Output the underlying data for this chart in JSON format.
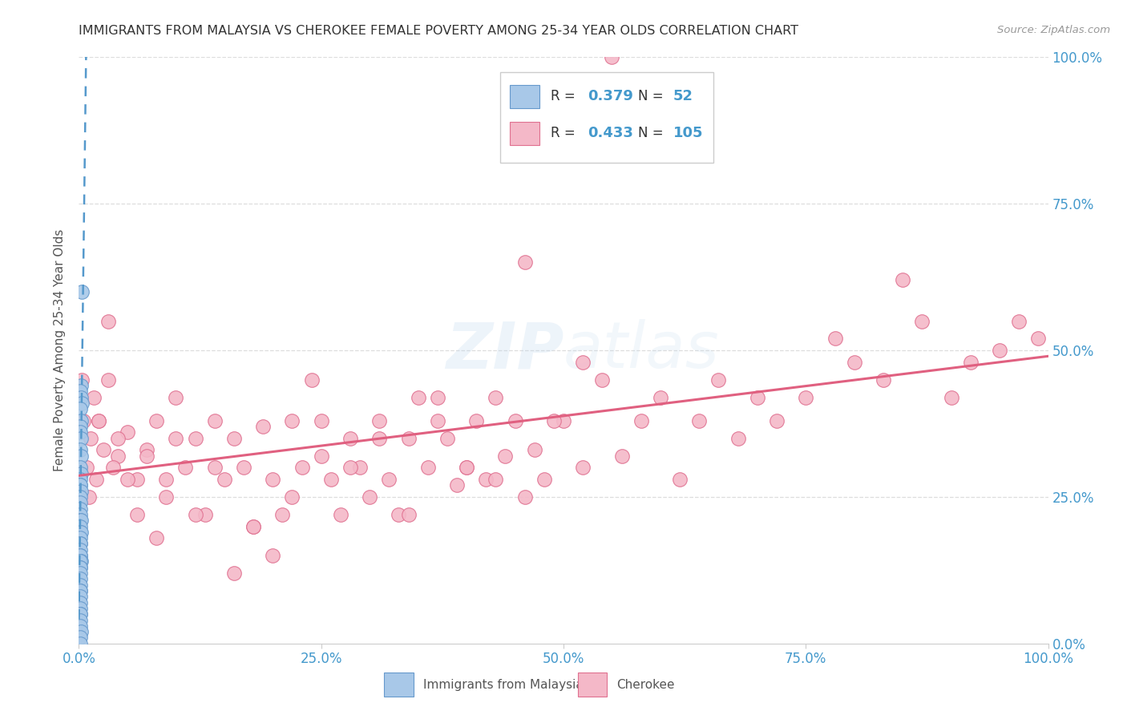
{
  "title": "IMMIGRANTS FROM MALAYSIA VS CHEROKEE FEMALE POVERTY AMONG 25-34 YEAR OLDS CORRELATION CHART",
  "source": "Source: ZipAtlas.com",
  "ylabel": "Female Poverty Among 25-34 Year Olds",
  "legend_label1": "Immigrants from Malaysia",
  "legend_label2": "Cherokee",
  "R1": "0.379",
  "N1": "52",
  "R2": "0.433",
  "N2": "105",
  "blue_scatter_color": "#a8c8e8",
  "blue_edge_color": "#6699cc",
  "pink_scatter_color": "#f4b8c8",
  "pink_edge_color": "#e07090",
  "blue_line_color": "#5599cc",
  "pink_line_color": "#e06080",
  "axis_tick_color": "#4499cc",
  "ylabel_color": "#555555",
  "title_color": "#333333",
  "source_color": "#999999",
  "grid_color": "#dddddd",
  "legend_border_color": "#cccccc",
  "watermark_color": "#c8ddeebb",
  "background_color": "#ffffff",
  "blue_x": [
    0.003,
    0.002,
    0.001,
    0.002,
    0.003,
    0.001,
    0.002,
    0.001,
    0.001,
    0.002,
    0.001,
    0.002,
    0.001,
    0.002,
    0.001,
    0.001,
    0.001,
    0.002,
    0.001,
    0.001,
    0.001,
    0.001,
    0.001,
    0.002,
    0.001,
    0.001,
    0.002,
    0.001,
    0.001,
    0.001,
    0.001,
    0.001,
    0.001,
    0.002,
    0.001,
    0.001,
    0.001,
    0.001,
    0.001,
    0.001,
    0.001,
    0.001,
    0.001,
    0.001,
    0.001,
    0.001,
    0.001,
    0.001,
    0.001,
    0.002,
    0.001,
    0.001
  ],
  "blue_y": [
    0.6,
    0.44,
    0.43,
    0.42,
    0.41,
    0.4,
    0.38,
    0.37,
    0.36,
    0.35,
    0.33,
    0.32,
    0.3,
    0.29,
    0.28,
    0.27,
    0.27,
    0.26,
    0.25,
    0.24,
    0.23,
    0.22,
    0.21,
    0.21,
    0.2,
    0.19,
    0.19,
    0.18,
    0.17,
    0.17,
    0.16,
    0.15,
    0.15,
    0.14,
    0.14,
    0.13,
    0.13,
    0.12,
    0.11,
    0.1,
    0.09,
    0.09,
    0.08,
    0.07,
    0.06,
    0.05,
    0.05,
    0.04,
    0.03,
    0.02,
    0.01,
    0.0
  ],
  "pink_x": [
    0.02,
    0.03,
    0.04,
    0.05,
    0.06,
    0.07,
    0.08,
    0.09,
    0.1,
    0.11,
    0.12,
    0.13,
    0.14,
    0.15,
    0.16,
    0.17,
    0.18,
    0.19,
    0.2,
    0.21,
    0.22,
    0.23,
    0.24,
    0.25,
    0.26,
    0.27,
    0.28,
    0.29,
    0.3,
    0.31,
    0.32,
    0.33,
    0.34,
    0.35,
    0.36,
    0.37,
    0.38,
    0.39,
    0.4,
    0.41,
    0.42,
    0.43,
    0.44,
    0.45,
    0.46,
    0.47,
    0.48,
    0.5,
    0.52,
    0.54,
    0.56,
    0.58,
    0.6,
    0.62,
    0.64,
    0.66,
    0.68,
    0.7,
    0.72,
    0.75,
    0.78,
    0.8,
    0.83,
    0.85,
    0.87,
    0.9,
    0.92,
    0.95,
    0.97,
    0.99,
    0.003,
    0.005,
    0.008,
    0.01,
    0.012,
    0.015,
    0.018,
    0.02,
    0.025,
    0.03,
    0.035,
    0.04,
    0.05,
    0.06,
    0.07,
    0.08,
    0.09,
    0.1,
    0.12,
    0.14,
    0.16,
    0.18,
    0.2,
    0.22,
    0.25,
    0.28,
    0.31,
    0.34,
    0.37,
    0.4,
    0.43,
    0.46,
    0.49,
    0.52,
    0.55
  ],
  "pink_y": [
    0.38,
    0.45,
    0.32,
    0.36,
    0.28,
    0.33,
    0.38,
    0.25,
    0.42,
    0.3,
    0.35,
    0.22,
    0.38,
    0.28,
    0.35,
    0.3,
    0.2,
    0.37,
    0.28,
    0.22,
    0.38,
    0.3,
    0.45,
    0.32,
    0.28,
    0.22,
    0.35,
    0.3,
    0.25,
    0.38,
    0.28,
    0.22,
    0.35,
    0.42,
    0.3,
    0.38,
    0.35,
    0.27,
    0.3,
    0.38,
    0.28,
    0.42,
    0.32,
    0.38,
    0.25,
    0.33,
    0.28,
    0.38,
    0.3,
    0.45,
    0.32,
    0.38,
    0.42,
    0.28,
    0.38,
    0.45,
    0.35,
    0.42,
    0.38,
    0.42,
    0.52,
    0.48,
    0.45,
    0.62,
    0.55,
    0.42,
    0.48,
    0.5,
    0.55,
    0.52,
    0.45,
    0.38,
    0.3,
    0.25,
    0.35,
    0.42,
    0.28,
    0.38,
    0.33,
    0.55,
    0.3,
    0.35,
    0.28,
    0.22,
    0.32,
    0.18,
    0.28,
    0.35,
    0.22,
    0.3,
    0.12,
    0.2,
    0.15,
    0.25,
    0.38,
    0.3,
    0.35,
    0.22,
    0.42,
    0.3,
    0.28,
    0.65,
    0.38,
    0.48,
    1.0
  ]
}
